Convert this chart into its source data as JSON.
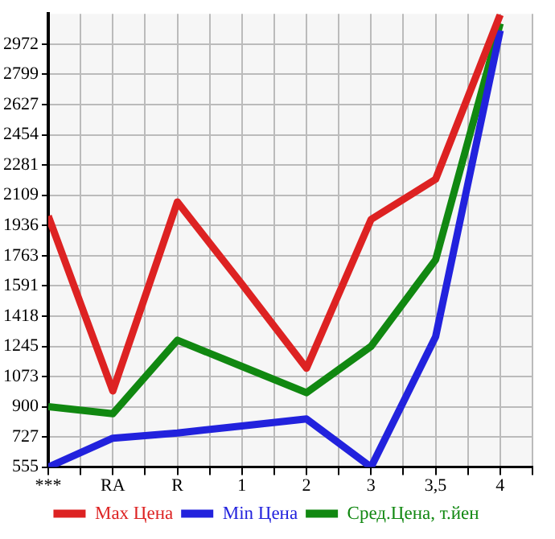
{
  "chart_data": {
    "type": "line",
    "categories": [
      "***",
      "RA",
      "R",
      "1",
      "2",
      "3",
      "3,5",
      "4"
    ],
    "ylim": [
      555,
      3145
    ],
    "yticks": [
      555,
      727,
      900,
      1073,
      1245,
      1418,
      1591,
      1763,
      1936,
      2109,
      2281,
      2454,
      2627,
      2799,
      2972
    ],
    "grid": true,
    "legend": "bottom",
    "marker": "none",
    "line_style": "solid",
    "series": [
      {
        "name": "Max Цена",
        "color": "#dd2222",
        "values": [
          1990,
          990,
          2070,
          1600,
          1120,
          1970,
          2200,
          3140
        ]
      },
      {
        "name": "Min Цена",
        "color": "#2222dd",
        "values": [
          555,
          720,
          750,
          790,
          830,
          555,
          1300,
          3050
        ]
      },
      {
        "name": "Сред.Цена, т.йен",
        "color": "#118811",
        "values": [
          900,
          860,
          1280,
          1130,
          980,
          1245,
          1740,
          3090
        ]
      }
    ]
  }
}
